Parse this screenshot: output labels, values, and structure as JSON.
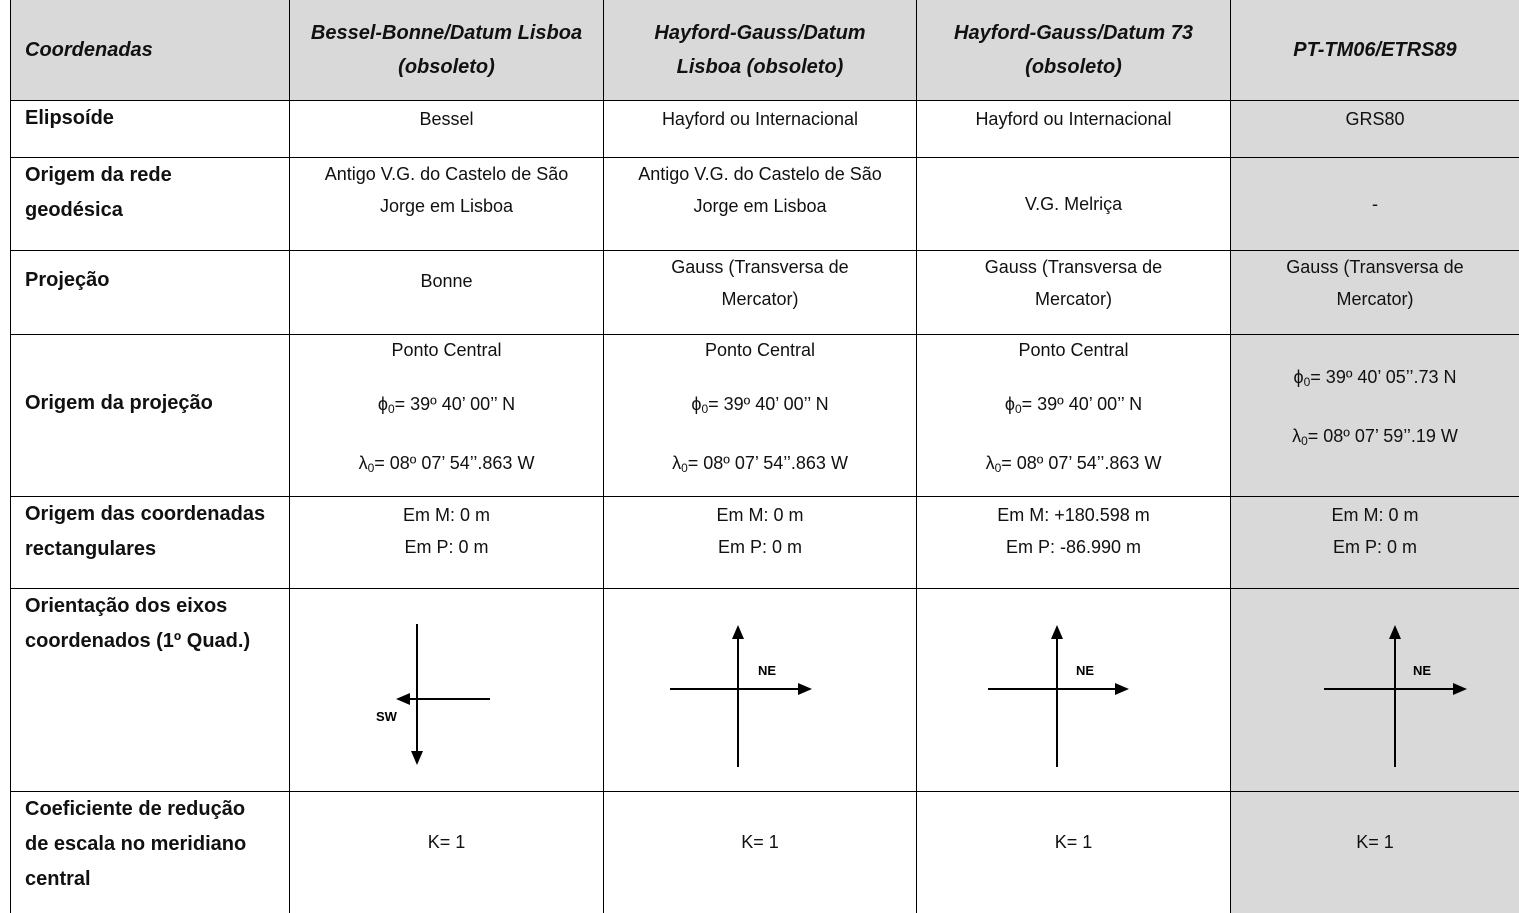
{
  "header": {
    "coordenadas": "Coordenadas",
    "col1": "Bessel-Bonne/Datum Lisboa (obsoleto)",
    "col1_line1": "Bessel-Bonne/Datum Lisboa",
    "col1_line2": "(obsoleto)",
    "col2_line1": "Hayford-Gauss/Datum",
    "col2_line2": "Lisboa (obsoleto)",
    "col3_line1": "Hayford-Gauss/Datum 73",
    "col3_line2": "(obsoleto)",
    "col4": "PT-TM06/ETRS89"
  },
  "rows": {
    "elipsoide": {
      "label": "Elipsoíde",
      "c1": "Bessel",
      "c2": "Hayford ou Internacional",
      "c3": "Hayford ou Internacional",
      "c4": "GRS80"
    },
    "origem_rede": {
      "label_l1": "Origem da rede",
      "label_l2": "geodésica",
      "c1_l1": "Antigo V.G. do Castelo de São",
      "c1_l2": "Jorge em Lisboa",
      "c2_l1": "Antigo V.G. do Castelo de São",
      "c2_l2": "Jorge em Lisboa",
      "c3": "V.G.  Melriça",
      "c4": "-"
    },
    "projecao": {
      "label": "Projeção",
      "c1": "Bonne",
      "c2_l1": "Gauss (Transversa de",
      "c2_l2": "Mercator)",
      "c3_l1": "Gauss (Transversa de",
      "c3_l2": "Mercator)",
      "c4_l1": "Gauss (Transversa de",
      "c4_l2": "Mercator)"
    },
    "origem_projecao": {
      "label": "Origem da projeção",
      "ponto": "Ponto Central",
      "phi_sym": "ϕ",
      "lambda_sym": "λ",
      "sub0": "0",
      "phi_c1": "= 39º 40’ 00’’ N",
      "lambda_c1": "= 08º 07’ 54’’.863 W",
      "phi_c2": "= 39º 40’ 00’’ N",
      "lambda_c2": "= 08º 07’ 54’’.863 W",
      "phi_c3": "= 39º 40’ 00’’ N",
      "lambda_c3": "= 08º 07’ 54’’.863 W",
      "phi_c4": "= 39º 40’ 05’’.73 N",
      "lambda_c4": "= 08º 07’ 59’’.19 W"
    },
    "origem_coord": {
      "label_l1": "Origem das coordenadas",
      "label_l2": "rectangulares",
      "c1_m": "Em M: 0 m",
      "c1_p": "Em P: 0 m",
      "c2_m": "Em M: 0 m",
      "c2_p": "Em P: 0 m",
      "c3_m": "Em M: +180.598 m",
      "c3_p": "Em P: -86.990 m",
      "c4_m": "Em M: 0 m",
      "c4_p": "Em P: 0 m"
    },
    "orientacao": {
      "label_l1": "Orientação dos eixos",
      "label_l2": "coordenados (1º Quad.)",
      "c1": "SW",
      "c2": "NE",
      "c3": "NE",
      "c4": "NE"
    },
    "coeficiente": {
      "label_l1": "Coeficiente de redução",
      "label_l2": "de escala no meridiano",
      "label_l3": "central",
      "c1": "K= 1",
      "c2": "K= 1",
      "c3": "K= 1",
      "c4": "K= 1"
    }
  }
}
